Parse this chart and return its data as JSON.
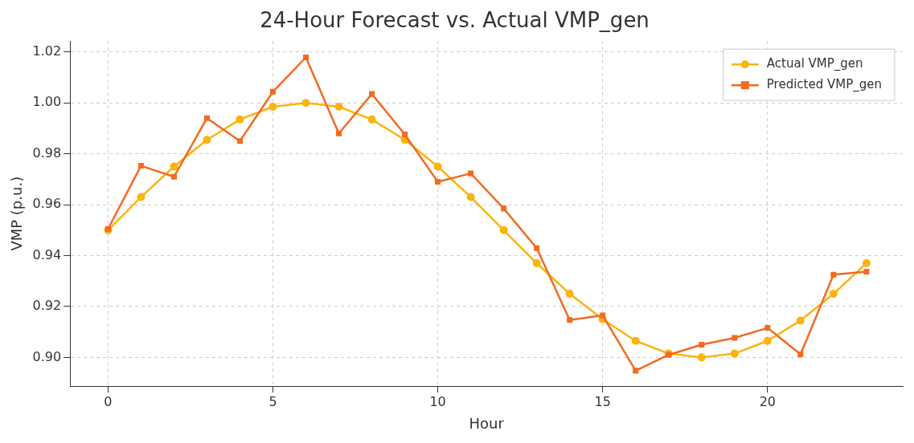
{
  "chart_data": {
    "type": "line",
    "title": "24-Hour Forecast vs. Actual VMP_gen",
    "xlabel": "Hour",
    "ylabel": "VMP (p.u.)",
    "x": [
      0,
      1,
      2,
      3,
      4,
      5,
      6,
      7,
      8,
      9,
      10,
      11,
      12,
      13,
      14,
      15,
      16,
      17,
      18,
      19,
      20,
      21,
      22,
      23
    ],
    "series": [
      {
        "name": "Actual VMP_gen",
        "color": "#fbb40f",
        "marker": "circle",
        "values": [
          0.95,
          0.963,
          0.975,
          0.9855,
          0.9935,
          0.9985,
          1.0,
          0.9985,
          0.9935,
          0.9855,
          0.975,
          0.963,
          0.95,
          0.937,
          0.925,
          0.915,
          0.9065,
          0.9015,
          0.9,
          0.9015,
          0.9065,
          0.9145,
          0.925,
          0.937
        ]
      },
      {
        "name": "Predicted VMP_gen",
        "color": "#f26b21",
        "marker": "square",
        "values": [
          0.9505,
          0.9753,
          0.971,
          0.994,
          0.985,
          1.0044,
          1.0179,
          0.988,
          1.0035,
          0.9876,
          0.969,
          0.9723,
          0.9585,
          0.9429,
          0.9147,
          0.9165,
          0.8948,
          0.901,
          0.905,
          0.9077,
          0.9116,
          0.9012,
          0.9325,
          0.9337
        ]
      }
    ],
    "xlim": [
      -1.15,
      24.1
    ],
    "xticks": [
      0,
      5,
      10,
      15,
      20
    ],
    "ylim": [
      0.8887,
      1.0243
    ],
    "yticks": [
      {
        "value": 0.9,
        "label": "0.90"
      },
      {
        "value": 0.92,
        "label": "0.92"
      },
      {
        "value": 0.94,
        "label": "0.94"
      },
      {
        "value": 0.96,
        "label": "0.96"
      },
      {
        "value": 0.98,
        "label": "0.98"
      },
      {
        "value": 1.0,
        "label": "1.00"
      },
      {
        "value": 1.02,
        "label": "1.02"
      }
    ],
    "grid": true,
    "legend": "top right",
    "line_style": "solid"
  }
}
